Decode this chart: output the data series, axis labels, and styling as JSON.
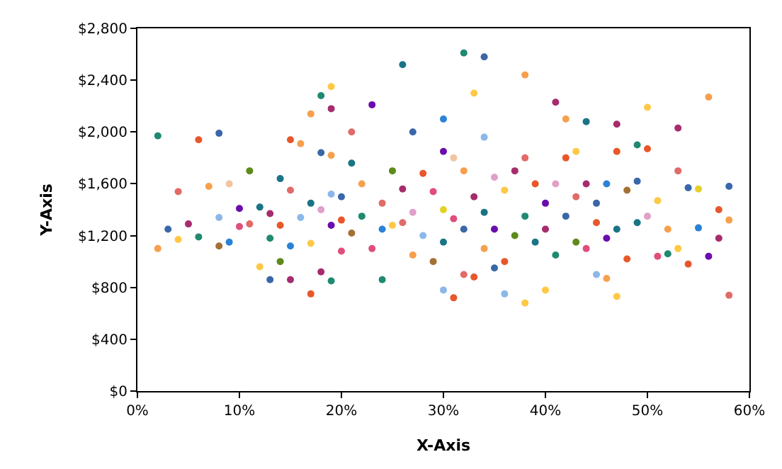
{
  "chart_data": {
    "type": "scatter",
    "xlabel": "X-Axis",
    "ylabel": "Y-Axis",
    "marker": "circle",
    "grid": false,
    "xlim": [
      0,
      60
    ],
    "ylim": [
      0,
      2800
    ],
    "xticks": [
      {
        "value": 0,
        "label": "0%"
      },
      {
        "value": 10,
        "label": "10%"
      },
      {
        "value": 20,
        "label": "20%"
      },
      {
        "value": 30,
        "label": "30%"
      },
      {
        "value": 40,
        "label": "40%"
      },
      {
        "value": 50,
        "label": "50%"
      },
      {
        "value": 60,
        "label": "60%"
      }
    ],
    "yticks": [
      {
        "value": 0,
        "label": "$0"
      },
      {
        "value": 400,
        "label": "$400"
      },
      {
        "value": 800,
        "label": "$800"
      },
      {
        "value": 1200,
        "label": "$1,200"
      },
      {
        "value": 1600,
        "label": "$1,600"
      },
      {
        "value": 2000,
        "label": "$2,000"
      },
      {
        "value": 2400,
        "label": "$2,400"
      },
      {
        "value": 2800,
        "label": "$2,800"
      }
    ],
    "series": [
      {
        "x": [
          2,
          2,
          3,
          4,
          4,
          5,
          6,
          6,
          7,
          8,
          8,
          8,
          9,
          9,
          10,
          10,
          11,
          11,
          12,
          12,
          13,
          13,
          13,
          14,
          14,
          14,
          15,
          15,
          15,
          15,
          16,
          16,
          17,
          17,
          17,
          17,
          18,
          18,
          18,
          18,
          19,
          19,
          19,
          19,
          19,
          19,
          20,
          20,
          20,
          21,
          21,
          21,
          22,
          22,
          23,
          23,
          24,
          24,
          24,
          25,
          25,
          26,
          26,
          26,
          27,
          27,
          27,
          28,
          28,
          29,
          29,
          30,
          30,
          30,
          30,
          30,
          31,
          31,
          31,
          32,
          32,
          32,
          32,
          33,
          33,
          33,
          34,
          34,
          34,
          34,
          35,
          35,
          35,
          36,
          36,
          36,
          37,
          37,
          38,
          38,
          38,
          38,
          39,
          39,
          40,
          40,
          40,
          41,
          41,
          41,
          42,
          42,
          42,
          43,
          43,
          43,
          44,
          44,
          44,
          45,
          45,
          45,
          46,
          46,
          46,
          47,
          47,
          47,
          47,
          48,
          48,
          49,
          49,
          49,
          50,
          50,
          50,
          51,
          51,
          52,
          52,
          53,
          53,
          53,
          54,
          54,
          55,
          55,
          56,
          56,
          57,
          57,
          58,
          58,
          58
        ],
        "values": [
          1970,
          1100,
          1250,
          1170,
          1540,
          1290,
          1940,
          1190,
          1580,
          1990,
          1340,
          1120,
          1600,
          1150,
          1410,
          1270,
          1700,
          1290,
          1420,
          960,
          1370,
          1180,
          860,
          1640,
          1280,
          1000,
          1940,
          1550,
          1120,
          860,
          1910,
          1340,
          2140,
          1450,
          1140,
          750,
          2280,
          1840,
          1400,
          920,
          2350,
          2180,
          1820,
          1520,
          1280,
          850,
          1500,
          1320,
          1080,
          2000,
          1760,
          1220,
          1600,
          1350,
          2210,
          1100,
          1450,
          1250,
          860,
          1700,
          1280,
          2520,
          1300,
          1560,
          2000,
          1380,
          1050,
          1680,
          1200,
          1540,
          1000,
          2100,
          1850,
          1400,
          1150,
          780,
          1800,
          1330,
          720,
          2610,
          1700,
          1250,
          900,
          2300,
          1500,
          880,
          2580,
          1960,
          1380,
          1100,
          1650,
          1250,
          950,
          1550,
          1000,
          750,
          1700,
          1200,
          2440,
          1800,
          1350,
          680,
          1600,
          1150,
          1450,
          1250,
          780,
          2230,
          1600,
          1050,
          2100,
          1800,
          1350,
          1850,
          1500,
          1150,
          2080,
          1600,
          1100,
          1450,
          1300,
          900,
          1600,
          1180,
          870,
          2060,
          1850,
          1250,
          730,
          1550,
          1020,
          1620,
          1900,
          1300,
          2190,
          1870,
          1350,
          1470,
          1040,
          1250,
          1060,
          2030,
          1700,
          1100,
          1570,
          980,
          1560,
          1260,
          2270,
          1040,
          1400,
          1180,
          1580,
          740,
          1320
        ],
        "colors": [
          "#1f8a70",
          "#f6a04d",
          "#3a67a8",
          "#ffc845",
          "#e06b68",
          "#a62c6c",
          "#e8572a",
          "#1f8a70",
          "#f6a04d",
          "#3a67a8",
          "#8bb8e8",
          "#a57034",
          "#f2c4a0",
          "#2a82d6",
          "#6a0dad",
          "#e04e7a",
          "#5e8a1c",
          "#e06b68",
          "#1a7486",
          "#ffc845",
          "#a62c6c",
          "#1f8a70",
          "#3a67a8",
          "#1a7486",
          "#e8572a",
          "#5e8a1c",
          "#e8572a",
          "#e06b68",
          "#2a82d6",
          "#a62c6c",
          "#f6a04d",
          "#8bb8e8",
          "#f6a04d",
          "#1a7486",
          "#ffc845",
          "#e8572a",
          "#1f8a70",
          "#3a67a8",
          "#e0a0c8",
          "#a62c6c",
          "#ffc845",
          "#a62c6c",
          "#f6a04d",
          "#8bb8e8",
          "#6a0dad",
          "#1f8a70",
          "#3a67a8",
          "#e8572a",
          "#e04e7a",
          "#e06b68",
          "#1a7486",
          "#a57034",
          "#f6a04d",
          "#1f8a70",
          "#6a0dad",
          "#e04e7a",
          "#e06b68",
          "#2a82d6",
          "#1f8a70",
          "#5e8a1c",
          "#ffc845",
          "#1a7486",
          "#e06b68",
          "#a62c6c",
          "#3a67a8",
          "#e0a0c8",
          "#f6a04d",
          "#e8572a",
          "#8bb8e8",
          "#e04e7a",
          "#a57034",
          "#2a82d6",
          "#6a0dad",
          "#e3d02a",
          "#1a7486",
          "#8bb8e8",
          "#f2c4a0",
          "#e04e7a",
          "#e8572a",
          "#1f8a70",
          "#f6a04d",
          "#3a67a8",
          "#e06b68",
          "#ffc845",
          "#a62c6c",
          "#e8572a",
          "#3a67a8",
          "#8bb8e8",
          "#1a7486",
          "#f6a04d",
          "#e0a0c8",
          "#6a0dad",
          "#3a67a8",
          "#ffc845",
          "#e8572a",
          "#8bb8e8",
          "#a62c6c",
          "#5e8a1c",
          "#f6a04d",
          "#e06b68",
          "#1f8a70",
          "#ffc845",
          "#e8572a",
          "#1a7486",
          "#6a0dad",
          "#a62c6c",
          "#ffc845",
          "#a62c6c",
          "#e0a0c8",
          "#1f8a70",
          "#f6a04d",
          "#e8572a",
          "#3a67a8",
          "#ffc845",
          "#e06b68",
          "#5e8a1c",
          "#1a7486",
          "#a62c6c",
          "#e04e7a",
          "#3a67a8",
          "#e8572a",
          "#8bb8e8",
          "#2a82d6",
          "#6a0dad",
          "#f6a04d",
          "#a62c6c",
          "#e8572a",
          "#1a7486",
          "#ffc845",
          "#a57034",
          "#e8572a",
          "#3a67a8",
          "#1f8a70",
          "#1a7486",
          "#ffc845",
          "#e8572a",
          "#e0a0c8",
          "#ffc845",
          "#e04e7a",
          "#f6a04d",
          "#1f8a70",
          "#a62c6c",
          "#e06b68",
          "#ffc845",
          "#3a67a8",
          "#e8572a",
          "#e3d02a",
          "#2a82d6",
          "#f6a04d",
          "#6a0dad",
          "#e8572a",
          "#a62c6c",
          "#3a67a8",
          "#e06b68",
          "#f6a04d"
        ]
      }
    ]
  }
}
